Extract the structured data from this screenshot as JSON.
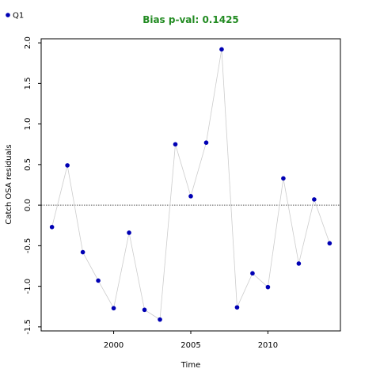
{
  "chart_data": {
    "type": "scatter",
    "title": "Bias p-val: 0.1425",
    "title_color": "#228b22",
    "xlabel": "Time",
    "ylabel": "Catch OSA residuals",
    "xlim": [
      1995.3,
      2014.7
    ],
    "ylim": [
      -1.55,
      2.05
    ],
    "x_ticks": [
      2000,
      2005,
      2010
    ],
    "x_tick_labels": [
      "2000",
      "2005",
      "2010"
    ],
    "y_ticks": [
      -1.5,
      -1.0,
      -0.5,
      0.0,
      0.5,
      1.0,
      1.5,
      2.0
    ],
    "y_tick_labels": [
      "-1.5",
      "-1.0",
      "-0.5",
      "0.0",
      "0.5",
      "1.0",
      "1.5",
      "2.0"
    ],
    "reference_line_y": 0,
    "grid": false,
    "legend_position": "top-left",
    "point_color": "#0000b4",
    "line_color": "#cccccc",
    "series": [
      {
        "name": "Q1",
        "x": [
          1996,
          1997,
          1998,
          1999,
          2000,
          2001,
          2002,
          2003,
          2004,
          2005,
          2006,
          2007,
          2008,
          2009,
          2010,
          2011,
          2012,
          2013,
          2014
        ],
        "y": [
          -0.27,
          0.49,
          -0.58,
          -0.93,
          -1.27,
          -0.34,
          -1.29,
          -1.41,
          0.75,
          0.11,
          0.77,
          1.92,
          -1.26,
          -0.84,
          -1.01,
          0.33,
          -0.72,
          0.07,
          -0.47
        ]
      }
    ]
  }
}
